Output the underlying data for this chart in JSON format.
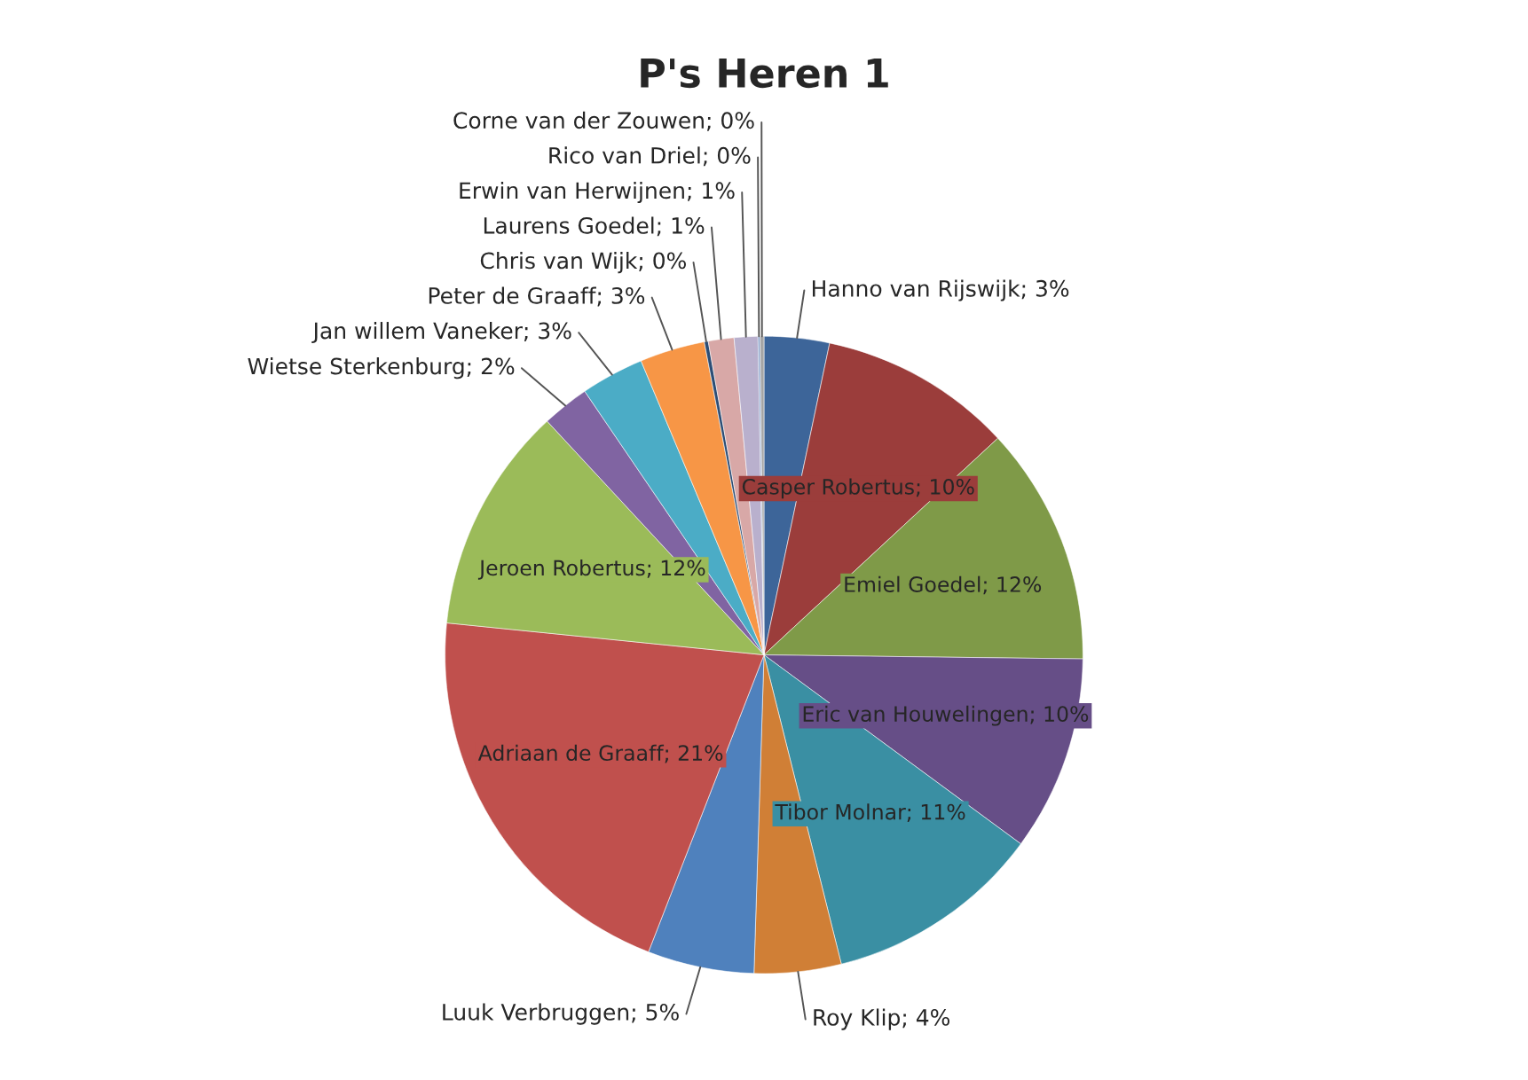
{
  "chart_data": {
    "type": "pie",
    "title": "P's Heren 1",
    "categories": [
      "Hanno van Rijswijk",
      "Casper Robertus",
      "Emiel Goedel",
      "Eric van Houwelingen",
      "Tibor Molnar",
      "Roy Klip",
      "Luuk Verbruggen",
      "Adriaan de Graaff",
      "Jeroen Robertus",
      "Wietse Sterkenburg",
      "Jan willem Vaneker",
      "Peter de Graaff",
      "Chris van Wijk",
      "Laurens Goedel",
      "Erwin van Herwijnen",
      "Rico van Driel",
      "Corne van der Zouwen"
    ],
    "values": [
      3.3,
      9.8,
      12.1,
      9.9,
      11.0,
      4.4,
      5.4,
      20.7,
      11.5,
      2.4,
      3.2,
      3.3,
      0.2,
      1.3,
      1.2,
      0.1,
      0.2
    ],
    "value_labels": [
      "3%",
      "10%",
      "12%",
      "10%",
      "11%",
      "4%",
      "5%",
      "21%",
      "12%",
      "2%",
      "3%",
      "3%",
      "0%",
      "1%",
      "1%",
      "0%",
      "0%"
    ],
    "colors": [
      "#3d6599",
      "#9b3d3b",
      "#7f9a48",
      "#664e87",
      "#3a8fa3",
      "#d07f36",
      "#4f81bd",
      "#c0504d",
      "#9bbb59",
      "#8064a2",
      "#4bacc6",
      "#f79646",
      "#2c4d75",
      "#d8a8a7",
      "#b9b0cd",
      "#7e9bc8",
      "#a5a5a5"
    ],
    "legend": false
  }
}
